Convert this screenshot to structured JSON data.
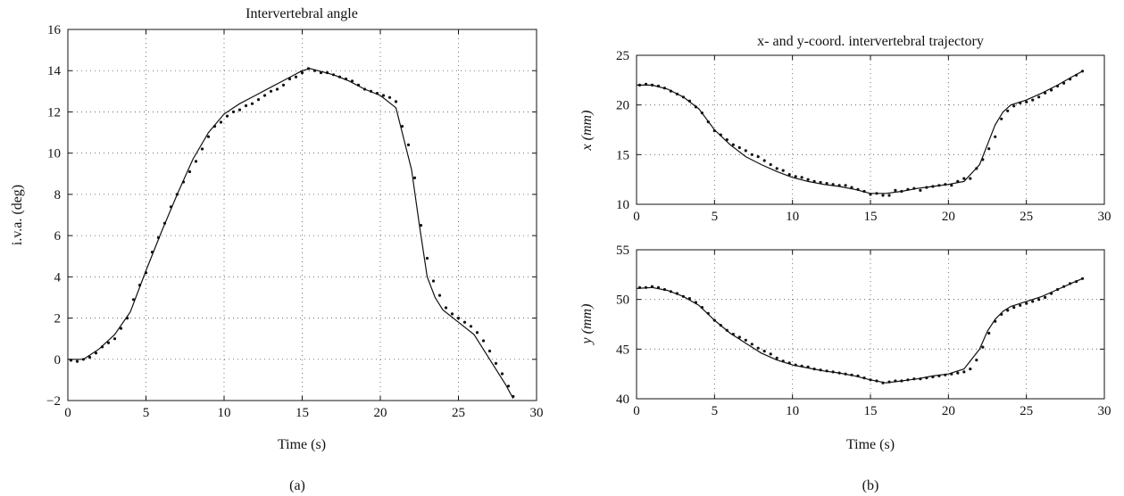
{
  "chart_data": [
    {
      "id": "a",
      "type": "line",
      "title": "Intervertebral angle",
      "xlabel": "Time (s)",
      "ylabel": "i.v.a. (deg)",
      "caption": "(a)",
      "xlim": [
        0,
        30
      ],
      "ylim": [
        -2,
        16
      ],
      "xticks": [
        "0",
        "5",
        "10",
        "15",
        "20",
        "25",
        "30"
      ],
      "yticks": [
        "−2",
        "0",
        "2",
        "4",
        "6",
        "8",
        "10",
        "12",
        "14",
        "16"
      ],
      "grid": true,
      "series": [
        {
          "style": "line",
          "x": [
            0,
            1,
            2,
            3,
            4,
            5,
            6,
            7,
            8,
            9,
            10,
            11,
            12,
            13,
            14,
            15,
            15.5,
            16,
            17,
            18,
            19,
            20,
            21,
            22,
            22.5,
            23,
            23.5,
            24,
            25,
            26,
            27,
            28,
            28.5
          ],
          "y": [
            0,
            0,
            0.5,
            1.2,
            2.3,
            4.3,
            6.2,
            8.0,
            9.7,
            11.0,
            11.9,
            12.4,
            12.8,
            13.2,
            13.6,
            14.0,
            14.1,
            14.0,
            13.8,
            13.5,
            13.1,
            12.8,
            12.2,
            9.2,
            6.5,
            4.0,
            3.0,
            2.4,
            1.8,
            1.2,
            0.0,
            -1.2,
            -1.9
          ]
        },
        {
          "style": "markers",
          "x": [
            0.2,
            0.6,
            1.0,
            1.4,
            1.8,
            2.2,
            2.6,
            3.0,
            3.4,
            3.8,
            4.2,
            4.6,
            5.0,
            5.4,
            5.8,
            6.2,
            6.6,
            7.0,
            7.4,
            7.8,
            8.2,
            8.6,
            9.0,
            9.4,
            9.8,
            10.2,
            10.6,
            11.0,
            11.4,
            11.8,
            12.2,
            12.6,
            13.0,
            13.4,
            13.8,
            14.2,
            14.6,
            15.0,
            15.4,
            15.8,
            16.2,
            16.6,
            17.0,
            17.4,
            17.8,
            18.2,
            18.6,
            19.0,
            19.4,
            19.8,
            20.2,
            20.6,
            21.0,
            21.4,
            21.8,
            22.2,
            22.6,
            23.0,
            23.4,
            23.8,
            24.2,
            24.6,
            25.0,
            25.4,
            25.8,
            26.2,
            26.6,
            27.0,
            27.4,
            27.8,
            28.2,
            28.5
          ],
          "y": [
            -0.05,
            -0.1,
            0.0,
            0.1,
            0.3,
            0.6,
            0.8,
            1.0,
            1.5,
            2.0,
            2.9,
            3.6,
            4.2,
            5.2,
            5.9,
            6.6,
            7.4,
            8.0,
            8.6,
            9.1,
            9.6,
            10.2,
            10.8,
            11.3,
            11.5,
            11.8,
            12.0,
            12.1,
            12.3,
            12.4,
            12.6,
            12.8,
            13.0,
            13.1,
            13.3,
            13.6,
            13.7,
            13.9,
            14.1,
            14.0,
            13.9,
            13.9,
            13.8,
            13.7,
            13.6,
            13.5,
            13.3,
            13.1,
            13.0,
            12.9,
            12.8,
            12.7,
            12.5,
            11.3,
            10.4,
            8.8,
            6.5,
            4.9,
            3.8,
            3.1,
            2.5,
            2.2,
            2.0,
            1.8,
            1.6,
            1.3,
            0.9,
            0.4,
            -0.2,
            -0.7,
            -1.3,
            -1.8
          ]
        }
      ]
    },
    {
      "id": "b-top",
      "type": "line",
      "title": "x- and y-coord. intervertebral trajectory",
      "xlabel": "",
      "ylabel": "x (mm)",
      "xlim": [
        0,
        30
      ],
      "ylim": [
        10,
        25
      ],
      "xticks": [
        "0",
        "5",
        "10",
        "15",
        "20",
        "25",
        "30"
      ],
      "yticks": [
        "10",
        "15",
        "20",
        "25"
      ],
      "grid": true,
      "series": [
        {
          "style": "line",
          "x": [
            0,
            1,
            2,
            3,
            4,
            5,
            6,
            7,
            8,
            9,
            10,
            11,
            12,
            13,
            14,
            15,
            16,
            17,
            18,
            19,
            20,
            21,
            22,
            22.5,
            23,
            23.5,
            24,
            25,
            26,
            27,
            28,
            28.6
          ],
          "y": [
            22.0,
            22.0,
            21.6,
            20.8,
            19.6,
            17.5,
            16.0,
            14.8,
            14.0,
            13.3,
            12.7,
            12.3,
            12.0,
            11.8,
            11.5,
            11.1,
            11.1,
            11.3,
            11.6,
            11.8,
            12.0,
            12.3,
            14.0,
            16.0,
            18.0,
            19.3,
            20.0,
            20.5,
            21.2,
            22.0,
            22.9,
            23.4
          ]
        },
        {
          "style": "markers",
          "x": [
            0.2,
            0.6,
            1.0,
            1.4,
            1.8,
            2.2,
            2.6,
            3.0,
            3.4,
            3.8,
            4.2,
            4.6,
            5.0,
            5.4,
            5.8,
            6.2,
            6.6,
            7.0,
            7.4,
            7.8,
            8.2,
            8.6,
            9.0,
            9.4,
            9.8,
            10.2,
            10.6,
            11.0,
            11.4,
            11.8,
            12.2,
            12.6,
            13.0,
            13.4,
            13.8,
            14.2,
            14.6,
            15.0,
            15.4,
            15.8,
            16.2,
            16.6,
            17.0,
            17.4,
            17.8,
            18.2,
            18.6,
            19.0,
            19.4,
            19.8,
            20.2,
            20.6,
            21.0,
            21.4,
            21.8,
            22.2,
            22.6,
            23.0,
            23.4,
            23.8,
            24.2,
            24.6,
            25.0,
            25.4,
            25.8,
            26.2,
            26.6,
            27.0,
            27.4,
            27.8,
            28.2,
            28.6
          ],
          "y": [
            22.0,
            22.1,
            22.0,
            21.9,
            21.7,
            21.4,
            21.1,
            20.8,
            20.4,
            19.8,
            19.2,
            18.3,
            17.4,
            17.0,
            16.5,
            16.0,
            15.7,
            15.4,
            15.0,
            14.8,
            14.4,
            14.0,
            13.6,
            13.4,
            13.0,
            12.8,
            12.7,
            12.5,
            12.3,
            12.2,
            12.1,
            12.0,
            11.9,
            11.9,
            11.7,
            11.5,
            11.3,
            11.0,
            11.1,
            10.9,
            10.9,
            11.4,
            11.3,
            11.5,
            11.6,
            11.4,
            11.7,
            11.8,
            11.9,
            12.0,
            11.9,
            12.3,
            12.6,
            12.6,
            13.6,
            14.5,
            15.6,
            16.8,
            18.6,
            19.4,
            19.9,
            20.2,
            20.3,
            20.5,
            20.8,
            21.2,
            21.5,
            21.9,
            22.2,
            22.6,
            23.0,
            23.4
          ]
        }
      ]
    },
    {
      "id": "b-bottom",
      "type": "line",
      "title": "",
      "xlabel": "Time (s)",
      "ylabel": "y (mm)",
      "caption": "(b)",
      "xlim": [
        0,
        30
      ],
      "ylim": [
        40,
        55
      ],
      "xticks": [
        "0",
        "5",
        "10",
        "15",
        "20",
        "25",
        "30"
      ],
      "yticks": [
        "40",
        "45",
        "50",
        "55"
      ],
      "grid": true,
      "series": [
        {
          "style": "line",
          "x": [
            0,
            1,
            2,
            3,
            4,
            5,
            6,
            7,
            8,
            9,
            10,
            11,
            12,
            13,
            14,
            15,
            16,
            17,
            18,
            19,
            20,
            21,
            22,
            22.5,
            23,
            23.5,
            24,
            25,
            26,
            27,
            28,
            28.6
          ],
          "y": [
            51.1,
            51.2,
            50.9,
            50.3,
            49.4,
            47.9,
            46.6,
            45.6,
            44.6,
            43.9,
            43.4,
            43.1,
            42.8,
            42.6,
            42.3,
            41.9,
            41.6,
            41.8,
            42.0,
            42.3,
            42.5,
            43.0,
            45.0,
            46.8,
            48.0,
            48.8,
            49.3,
            49.8,
            50.3,
            51.0,
            51.7,
            52.1
          ]
        },
        {
          "style": "markers",
          "x": [
            0.2,
            0.6,
            1.0,
            1.4,
            1.8,
            2.2,
            2.6,
            3.0,
            3.4,
            3.8,
            4.2,
            4.6,
            5.0,
            5.4,
            5.8,
            6.2,
            6.6,
            7.0,
            7.4,
            7.8,
            8.2,
            8.6,
            9.0,
            9.4,
            9.8,
            10.2,
            10.6,
            11.0,
            11.4,
            11.8,
            12.2,
            12.6,
            13.0,
            13.4,
            13.8,
            14.2,
            14.6,
            15.0,
            15.4,
            15.8,
            16.2,
            16.6,
            17.0,
            17.4,
            17.8,
            18.2,
            18.6,
            19.0,
            19.4,
            19.8,
            20.2,
            20.6,
            21.0,
            21.4,
            21.8,
            22.2,
            22.6,
            23.0,
            23.4,
            23.8,
            24.2,
            24.6,
            25.0,
            25.4,
            25.8,
            26.2,
            26.6,
            27.0,
            27.4,
            27.8,
            28.2,
            28.6
          ],
          "y": [
            51.2,
            51.2,
            51.3,
            51.2,
            51.0,
            50.8,
            50.6,
            50.3,
            50.1,
            49.7,
            49.2,
            48.6,
            47.9,
            47.4,
            46.9,
            46.5,
            46.2,
            45.9,
            45.5,
            45.1,
            44.8,
            44.5,
            44.1,
            43.8,
            43.6,
            43.4,
            43.3,
            43.2,
            43.0,
            42.9,
            42.8,
            42.7,
            42.6,
            42.5,
            42.4,
            42.3,
            42.1,
            41.9,
            41.8,
            41.6,
            41.7,
            41.8,
            41.8,
            41.9,
            42.0,
            42.0,
            42.1,
            42.2,
            42.3,
            42.4,
            42.5,
            42.6,
            42.7,
            43.0,
            43.9,
            45.2,
            46.6,
            47.8,
            48.5,
            48.9,
            49.2,
            49.4,
            49.6,
            49.8,
            50.0,
            50.2,
            50.6,
            51.0,
            51.3,
            51.6,
            51.8,
            52.1
          ]
        }
      ]
    }
  ]
}
